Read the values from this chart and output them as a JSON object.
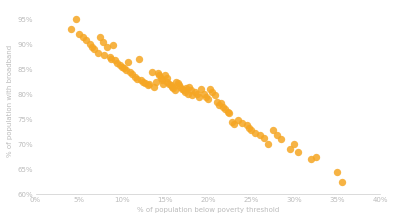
{
  "title": "",
  "xlabel": "% of population below poverty threshold",
  "ylabel": "% of population with broadband",
  "xlim": [
    0,
    0.4
  ],
  "ylim": [
    0.6,
    0.975
  ],
  "xticks": [
    0.0,
    0.05,
    0.1,
    0.15,
    0.2,
    0.25,
    0.3,
    0.35,
    0.4
  ],
  "yticks": [
    0.6,
    0.65,
    0.7,
    0.75,
    0.8,
    0.85,
    0.9,
    0.95
  ],
  "dot_color": "#F5A623",
  "dot_alpha": 0.85,
  "dot_size": 28,
  "background_color": "#ffffff",
  "tick_color": "#cccccc",
  "label_color": "#bbbbbb",
  "scatter_x": [
    0.041,
    0.047,
    0.051,
    0.055,
    0.059,
    0.063,
    0.065,
    0.068,
    0.072,
    0.075,
    0.078,
    0.08,
    0.083,
    0.086,
    0.088,
    0.09,
    0.092,
    0.095,
    0.098,
    0.1,
    0.103,
    0.105,
    0.107,
    0.11,
    0.112,
    0.115,
    0.118,
    0.12,
    0.122,
    0.125,
    0.127,
    0.13,
    0.132,
    0.135,
    0.137,
    0.14,
    0.142,
    0.143,
    0.145,
    0.147,
    0.148,
    0.15,
    0.152,
    0.153,
    0.155,
    0.157,
    0.158,
    0.16,
    0.162,
    0.163,
    0.165,
    0.167,
    0.168,
    0.17,
    0.172,
    0.173,
    0.175,
    0.177,
    0.178,
    0.18,
    0.182,
    0.185,
    0.187,
    0.19,
    0.192,
    0.195,
    0.198,
    0.2,
    0.203,
    0.205,
    0.208,
    0.21,
    0.213,
    0.215,
    0.218,
    0.22,
    0.223,
    0.225,
    0.228,
    0.23,
    0.235,
    0.24,
    0.245,
    0.248,
    0.25,
    0.255,
    0.26,
    0.265,
    0.27,
    0.275,
    0.28,
    0.285,
    0.295,
    0.3,
    0.305,
    0.32,
    0.325,
    0.35,
    0.355
  ],
  "scatter_y": [
    0.93,
    0.95,
    0.92,
    0.915,
    0.908,
    0.9,
    0.895,
    0.89,
    0.882,
    0.915,
    0.905,
    0.878,
    0.895,
    0.875,
    0.87,
    0.898,
    0.868,
    0.862,
    0.858,
    0.855,
    0.852,
    0.848,
    0.865,
    0.845,
    0.84,
    0.835,
    0.83,
    0.87,
    0.828,
    0.825,
    0.822,
    0.818,
    0.82,
    0.845,
    0.815,
    0.825,
    0.842,
    0.838,
    0.832,
    0.828,
    0.82,
    0.838,
    0.825,
    0.832,
    0.82,
    0.818,
    0.815,
    0.812,
    0.808,
    0.825,
    0.822,
    0.818,
    0.815,
    0.81,
    0.808,
    0.805,
    0.812,
    0.8,
    0.815,
    0.808,
    0.798,
    0.805,
    0.8,
    0.795,
    0.81,
    0.8,
    0.795,
    0.79,
    0.81,
    0.805,
    0.798,
    0.785,
    0.778,
    0.782,
    0.775,
    0.77,
    0.765,
    0.762,
    0.745,
    0.74,
    0.748,
    0.742,
    0.738,
    0.732,
    0.728,
    0.722,
    0.718,
    0.712,
    0.7,
    0.728,
    0.718,
    0.71,
    0.69,
    0.7,
    0.685,
    0.67,
    0.675,
    0.645,
    0.625
  ]
}
